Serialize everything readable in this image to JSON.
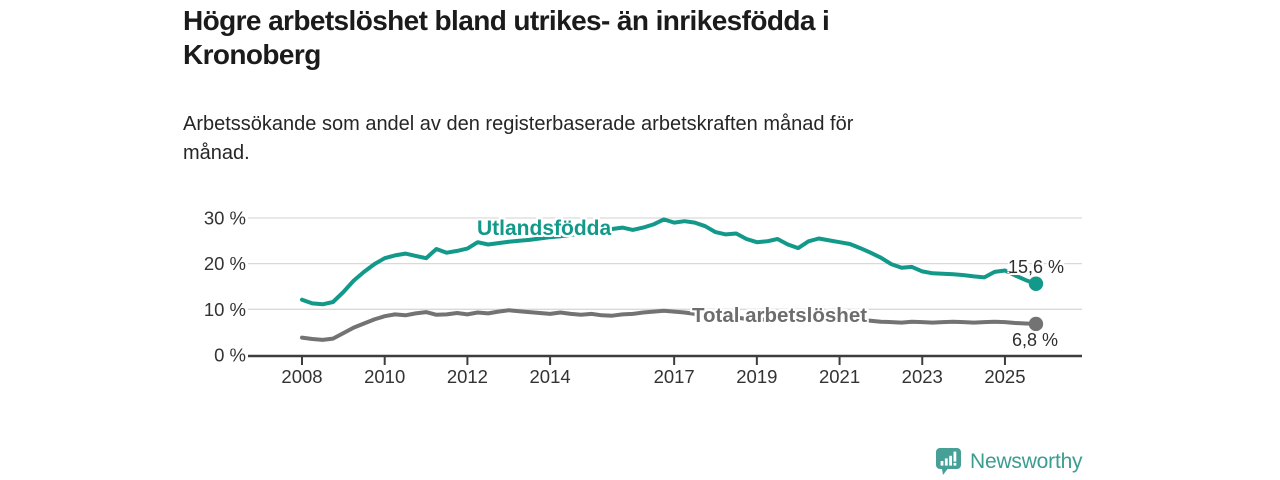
{
  "header": {
    "title_lines": [
      "Högre arbetslöshet bland utrikes- än inrikesfödda i",
      "Kronoberg"
    ],
    "subtitle_lines": [
      "Arbetssökande som andel av den registerbaserade arbetskraften månad för",
      "månad."
    ]
  },
  "footer": {
    "brand": "Newsworthy"
  },
  "colors": {
    "teal_line": "#12998a",
    "gray_line": "#737373",
    "axis": "#3d3d3d",
    "gridline": "#d9d9d9",
    "tick_text": "#333333",
    "title_text": "#1b1b1b",
    "annotation_text": "#2e2e2e",
    "brand_teal": "#47a096"
  },
  "chart_data": {
    "type": "line",
    "title": "Högre arbetslöshet bland utrikes- än inrikesfödda i Kronoberg",
    "subtitle": "Arbetssökande som andel av den registerbaserade arbetskraften månad för månad.",
    "xlabel": "",
    "ylabel": "",
    "unit": "%",
    "grid": "horizontal",
    "legend_position": "inline-labels",
    "xlim": [
      2007.7,
      2026.9
    ],
    "ylim": [
      0,
      33
    ],
    "x_axis": {
      "tick_values": [
        2008,
        2010,
        2012,
        2014,
        2017,
        2019,
        2021,
        2023,
        2025
      ],
      "tick_labels": [
        "2008",
        "2010",
        "2012",
        "2014",
        "2017",
        "2019",
        "2021",
        "2023",
        "2025"
      ]
    },
    "y_axis": {
      "tick_values": [
        0,
        10,
        20,
        30
      ],
      "tick_labels": [
        "0 %",
        "10 %",
        "20 %",
        "30 %"
      ]
    },
    "x": [
      2008,
      2008.25,
      2008.5,
      2008.75,
      2009,
      2009.25,
      2009.5,
      2009.75,
      2010,
      2010.25,
      2010.5,
      2010.75,
      2011,
      2011.25,
      2011.5,
      2011.75,
      2012,
      2012.25,
      2012.5,
      2012.75,
      2013,
      2013.25,
      2013.5,
      2013.75,
      2014,
      2014.25,
      2014.5,
      2014.75,
      2015,
      2015.25,
      2015.5,
      2015.75,
      2016,
      2016.25,
      2016.5,
      2016.75,
      2017,
      2017.25,
      2017.5,
      2017.75,
      2018,
      2018.25,
      2018.5,
      2018.75,
      2019,
      2019.25,
      2019.5,
      2019.75,
      2020,
      2020.25,
      2020.5,
      2020.75,
      2021,
      2021.25,
      2021.5,
      2021.75,
      2022,
      2022.25,
      2022.5,
      2022.75,
      2023,
      2023.25,
      2023.5,
      2023.75,
      2024,
      2024.25,
      2024.5,
      2024.75,
      2025,
      2025.25,
      2025.5,
      2025.75
    ],
    "series": [
      {
        "name": "Utlandsfödda",
        "color": "#12998a",
        "end_label": "15,6 %",
        "end_value": 15.6,
        "values": [
          12.1,
          11.3,
          11.1,
          11.6,
          13.8,
          16.3,
          18.2,
          19.9,
          21.2,
          21.8,
          22.2,
          21.7,
          21.2,
          23.2,
          22.4,
          22.8,
          23.3,
          24.7,
          24.2,
          24.5,
          24.8,
          25,
          25.2,
          25.5,
          25.8,
          26,
          26.3,
          26.6,
          27,
          27.3,
          27.6,
          27.9,
          27.4,
          27.9,
          28.6,
          29.7,
          29,
          29.3,
          29,
          28.2,
          26.9,
          26.4,
          26.6,
          25.4,
          24.7,
          24.9,
          25.4,
          24.2,
          23.4,
          24.9,
          25.5,
          25.1,
          24.7,
          24.3,
          23.4,
          22.4,
          21.3,
          19.9,
          19.1,
          19.3,
          18.3,
          17.9,
          17.8,
          17.7,
          17.5,
          17.2,
          17,
          18.2,
          18.5,
          17.4,
          16.4,
          15.6
        ]
      },
      {
        "name": "Total arbetslöshet",
        "color": "#737373",
        "end_label": "6,8 %",
        "end_value": 6.8,
        "values": [
          3.8,
          3.5,
          3.3,
          3.6,
          4.8,
          6,
          6.9,
          7.8,
          8.5,
          8.9,
          8.7,
          9.1,
          9.4,
          8.8,
          8.9,
          9.2,
          8.9,
          9.3,
          9.1,
          9.5,
          9.8,
          9.6,
          9.4,
          9.2,
          9,
          9.3,
          9,
          8.8,
          9,
          8.7,
          8.6,
          8.9,
          9,
          9.3,
          9.5,
          9.7,
          9.5,
          9.3,
          9,
          8.8,
          8.5,
          8.3,
          8.2,
          7.9,
          7.7,
          7.8,
          7.9,
          7.7,
          7.6,
          8.4,
          8.8,
          8.6,
          8.3,
          8,
          7.7,
          7.5,
          7.3,
          7.2,
          7.1,
          7.3,
          7.2,
          7.1,
          7.2,
          7.3,
          7.2,
          7.1,
          7.2,
          7.3,
          7.2,
          7,
          6.9,
          6.8
        ]
      }
    ]
  }
}
